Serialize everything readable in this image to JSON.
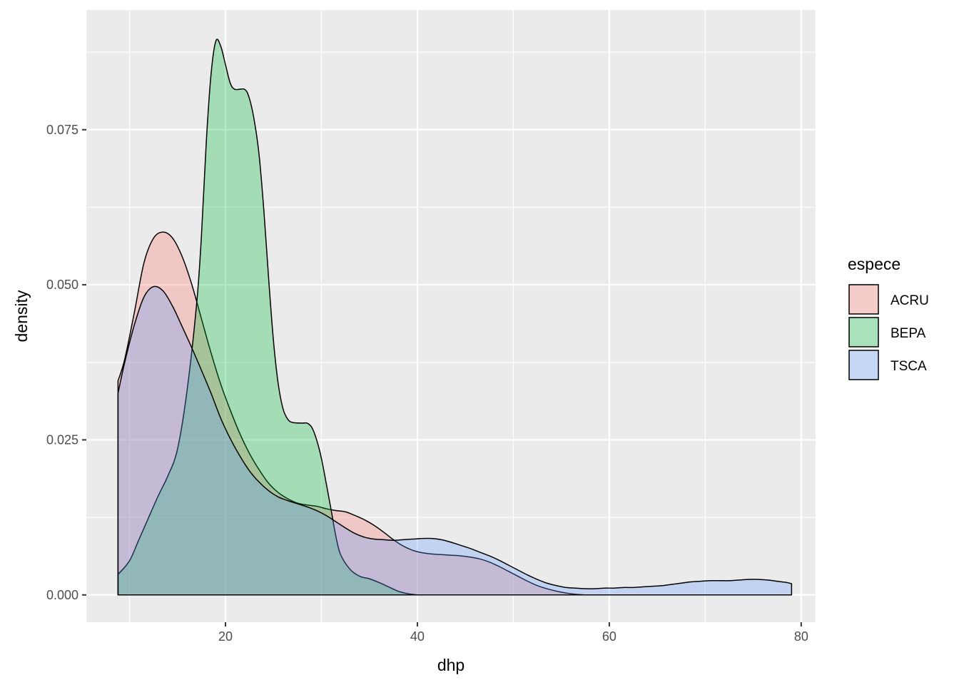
{
  "chart_data": {
    "type": "area",
    "subtype": "density",
    "xlabel": "dhp",
    "ylabel": "density",
    "xlim": [
      5.5,
      81.5
    ],
    "ylim": [
      -0.0044,
      0.0943
    ],
    "x_ticks": [
      20,
      40,
      60,
      80
    ],
    "x_minor_ticks": [
      10,
      30,
      50,
      70
    ],
    "y_ticks": [
      0.0,
      0.025,
      0.05,
      0.075
    ],
    "y_tick_labels": [
      "0.000",
      "0.025",
      "0.050",
      "0.075"
    ],
    "y_minor_ticks": [
      0.0125,
      0.0375,
      0.0625,
      0.0875
    ],
    "grid": true,
    "legend": {
      "title": "espece",
      "position": "right"
    },
    "series": [
      {
        "name": "ACRU",
        "color": "#F8766D",
        "points": [
          [
            8.8,
            0.0345
          ],
          [
            9.5,
            0.038
          ],
          [
            10.5,
            0.0455
          ],
          [
            11.5,
            0.0535
          ],
          [
            12.5,
            0.0575
          ],
          [
            13.5,
            0.0585
          ],
          [
            14.5,
            0.0575
          ],
          [
            15.5,
            0.0545
          ],
          [
            16.5,
            0.05
          ],
          [
            17.5,
            0.0445
          ],
          [
            18.5,
            0.039
          ],
          [
            19.5,
            0.034
          ],
          [
            20.5,
            0.0298
          ],
          [
            21.5,
            0.026
          ],
          [
            22.5,
            0.0228
          ],
          [
            23.5,
            0.0202
          ],
          [
            24.5,
            0.018
          ],
          [
            25.5,
            0.0165
          ],
          [
            26.5,
            0.0155
          ],
          [
            27.5,
            0.0148
          ],
          [
            28.5,
            0.0145
          ],
          [
            29.5,
            0.0143
          ],
          [
            30.5,
            0.0139
          ],
          [
            31.5,
            0.0136
          ],
          [
            32.5,
            0.0134
          ],
          [
            33.5,
            0.0128
          ],
          [
            34.5,
            0.0121
          ],
          [
            35.5,
            0.0112
          ],
          [
            36.5,
            0.0101
          ],
          [
            37.5,
            0.0089
          ],
          [
            38.5,
            0.0079
          ],
          [
            39.5,
            0.0072
          ],
          [
            40.5,
            0.0068
          ],
          [
            41.5,
            0.0066
          ],
          [
            42.5,
            0.0065
          ],
          [
            43.5,
            0.0064
          ],
          [
            44.5,
            0.0063
          ],
          [
            45.5,
            0.0061
          ],
          [
            46.5,
            0.0058
          ],
          [
            47.5,
            0.0053
          ],
          [
            48.5,
            0.0046
          ],
          [
            49.5,
            0.0038
          ],
          [
            50.5,
            0.003
          ],
          [
            51.5,
            0.0022
          ],
          [
            52.5,
            0.0015
          ],
          [
            53.5,
            0.001
          ],
          [
            54.5,
            0.0006
          ],
          [
            55.5,
            0.0003
          ],
          [
            56.5,
            0.0001
          ],
          [
            57.5,
            0.0
          ]
        ]
      },
      {
        "name": "BEPA",
        "color": "#00BA38",
        "points": [
          [
            8.8,
            0.0033
          ],
          [
            10,
            0.0055
          ],
          [
            11,
            0.009
          ],
          [
            12,
            0.0125
          ],
          [
            13,
            0.016
          ],
          [
            14,
            0.0192
          ],
          [
            15,
            0.0235
          ],
          [
            16,
            0.033
          ],
          [
            17,
            0.047
          ],
          [
            17.5,
            0.058
          ],
          [
            18,
            0.073
          ],
          [
            18.5,
            0.084
          ],
          [
            19,
            0.0893
          ],
          [
            19.5,
            0.0885
          ],
          [
            20,
            0.0855
          ],
          [
            20.5,
            0.0825
          ],
          [
            21,
            0.0815
          ],
          [
            22,
            0.0815
          ],
          [
            22.5,
            0.08
          ],
          [
            23,
            0.0765
          ],
          [
            23.5,
            0.071
          ],
          [
            24,
            0.062
          ],
          [
            24.5,
            0.051
          ],
          [
            25,
            0.041
          ],
          [
            25.5,
            0.034
          ],
          [
            26,
            0.03
          ],
          [
            26.5,
            0.0283
          ],
          [
            27,
            0.0278
          ],
          [
            28,
            0.0277
          ],
          [
            28.5,
            0.0277
          ],
          [
            29,
            0.027
          ],
          [
            29.5,
            0.025
          ],
          [
            30,
            0.022
          ],
          [
            30.5,
            0.018
          ],
          [
            31,
            0.0138
          ],
          [
            31.5,
            0.0095
          ],
          [
            32,
            0.0065
          ],
          [
            33,
            0.0041
          ],
          [
            34,
            0.003
          ],
          [
            35,
            0.0026
          ],
          [
            36,
            0.002
          ],
          [
            37,
            0.0013
          ],
          [
            38,
            0.0006
          ],
          [
            39,
            0.0002
          ],
          [
            40,
            0.0
          ]
        ]
      },
      {
        "name": "TSCA",
        "color": "#619CFF",
        "points": [
          [
            8.8,
            0.0325
          ],
          [
            9.5,
            0.0375
          ],
          [
            10.5,
            0.0435
          ],
          [
            11.5,
            0.048
          ],
          [
            12.5,
            0.0497
          ],
          [
            13.5,
            0.049
          ],
          [
            14.5,
            0.0465
          ],
          [
            15.5,
            0.0432
          ],
          [
            16.5,
            0.0398
          ],
          [
            17.5,
            0.0362
          ],
          [
            18.5,
            0.0325
          ],
          [
            19.5,
            0.0285
          ],
          [
            20.5,
            0.0252
          ],
          [
            21.5,
            0.0224
          ],
          [
            22.5,
            0.02
          ],
          [
            23.5,
            0.0182
          ],
          [
            24.5,
            0.0168
          ],
          [
            25.5,
            0.0158
          ],
          [
            26.5,
            0.0152
          ],
          [
            27.5,
            0.0147
          ],
          [
            28.5,
            0.0142
          ],
          [
            29.5,
            0.0136
          ],
          [
            30.5,
            0.0128
          ],
          [
            31.5,
            0.0118
          ],
          [
            32.5,
            0.0108
          ],
          [
            33.5,
            0.0099
          ],
          [
            34.5,
            0.0093
          ],
          [
            35.5,
            0.009
          ],
          [
            36.5,
            0.0089
          ],
          [
            37.5,
            0.0088
          ],
          [
            38.5,
            0.0089
          ],
          [
            39.5,
            0.009
          ],
          [
            40.5,
            0.0091
          ],
          [
            41.5,
            0.0091
          ],
          [
            42.5,
            0.0089
          ],
          [
            43.5,
            0.0085
          ],
          [
            44.5,
            0.008
          ],
          [
            45.5,
            0.0075
          ],
          [
            46.5,
            0.0069
          ],
          [
            47.5,
            0.0063
          ],
          [
            48.5,
            0.0056
          ],
          [
            49.5,
            0.0048
          ],
          [
            50.5,
            0.004
          ],
          [
            51.5,
            0.0032
          ],
          [
            52.5,
            0.0025
          ],
          [
            53.5,
            0.0019
          ],
          [
            54.5,
            0.0015
          ],
          [
            55.5,
            0.0012
          ],
          [
            56.5,
            0.0011
          ],
          [
            57.5,
            0.001
          ],
          [
            58.5,
            0.001
          ],
          [
            59.5,
            0.0011
          ],
          [
            60.5,
            0.0011
          ],
          [
            61.5,
            0.0012
          ],
          [
            62.5,
            0.0012
          ],
          [
            63.5,
            0.0013
          ],
          [
            64.5,
            0.0014
          ],
          [
            65.5,
            0.0015
          ],
          [
            66.5,
            0.0017
          ],
          [
            67.5,
            0.0019
          ],
          [
            68.5,
            0.0021
          ],
          [
            69.5,
            0.0022
          ],
          [
            70.5,
            0.0023
          ],
          [
            71.5,
            0.0023
          ],
          [
            72.5,
            0.0023
          ],
          [
            73.5,
            0.0024
          ],
          [
            74.5,
            0.0025
          ],
          [
            75.5,
            0.0025
          ],
          [
            76.5,
            0.0024
          ],
          [
            77.5,
            0.0022
          ],
          [
            78.5,
            0.002
          ],
          [
            79,
            0.0018
          ]
        ]
      }
    ]
  }
}
